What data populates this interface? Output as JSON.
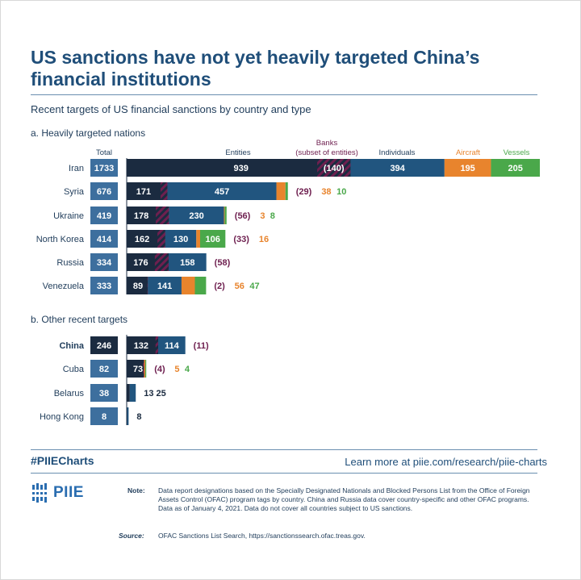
{
  "title": "US sanctions have not yet heavily targeted China’s financial institutions",
  "subtitle": "Recent targets of US financial sanctions by country and type",
  "section_a": "a. Heavily targeted nations",
  "section_b": "b. Other recent targets",
  "headers": {
    "total": "Total",
    "entities": "Entities",
    "banks": "Banks",
    "banks_note": "(subset of entities)",
    "individuals": "Individuals",
    "aircraft": "Aircraft",
    "vessels": "Vessels"
  },
  "colors": {
    "entities": "#1b2b40",
    "banks_hatch": "#6e1f4f",
    "individuals": "#21557f",
    "aircraft": "#e8842d",
    "vessels": "#4aa84a",
    "total_box": "#3d6f9e",
    "total_box_highlight": "#1b2b40"
  },
  "chart_data": {
    "type": "bar",
    "stacked": true,
    "orientation": "horizontal",
    "series_names": [
      "Entities",
      "Banks (subset of entities)",
      "Individuals",
      "Aircraft",
      "Vessels"
    ],
    "groups": [
      {
        "label": "a. Heavily targeted nations",
        "rows": [
          {
            "country": "Iran",
            "total": "1733",
            "entities": 939,
            "banks": 140,
            "individuals": 394,
            "aircraft": 195,
            "vessels": 205,
            "labels": {
              "entities": "939",
              "banks": "(140)",
              "individuals": "394",
              "aircraft": "195",
              "vessels": "205"
            },
            "outside": []
          },
          {
            "country": "Syria",
            "total": "676",
            "entities": 171,
            "banks": 29,
            "individuals": 457,
            "aircraft": 38,
            "vessels": 10,
            "labels": {
              "entities": "171",
              "individuals": "457"
            },
            "outside": [
              {
                "t": "(29)",
                "c": "banks"
              },
              {
                "t": "38",
                "c": "aircraft"
              },
              {
                "t": "10",
                "c": "vessels"
              }
            ]
          },
          {
            "country": "Ukraine",
            "total": "419",
            "entities": 178,
            "banks": 56,
            "individuals": 230,
            "aircraft": 3,
            "vessels": 8,
            "labels": {
              "entities": "178",
              "individuals": "230"
            },
            "outside": [
              {
                "t": "(56)",
                "c": "banks"
              },
              {
                "t": "3",
                "c": "aircraft"
              },
              {
                "t": "8",
                "c": "vessels"
              }
            ]
          },
          {
            "country": "North Korea",
            "total": "414",
            "entities": 162,
            "banks": 33,
            "individuals": 130,
            "aircraft": 16,
            "vessels": 106,
            "labels": {
              "entities": "162",
              "individuals": "130",
              "vessels": "106"
            },
            "outside": [
              {
                "t": "(33)",
                "c": "banks"
              },
              {
                "t": "16",
                "c": "aircraft"
              }
            ]
          },
          {
            "country": "Russia",
            "total": "334",
            "entities": 176,
            "banks": 58,
            "individuals": 158,
            "aircraft": 0,
            "vessels": 0,
            "labels": {
              "entities": "176",
              "individuals": "158"
            },
            "outside": [
              {
                "t": "(58)",
                "c": "banks"
              }
            ]
          },
          {
            "country": "Venezuela",
            "total": "333",
            "entities": 89,
            "banks": 2,
            "individuals": 141,
            "aircraft": 56,
            "vessels": 47,
            "labels": {
              "entities": "89",
              "individuals": "141"
            },
            "outside": [
              {
                "t": "(2)",
                "c": "banks"
              },
              {
                "t": "56",
                "c": "aircraft"
              },
              {
                "t": "47",
                "c": "vessels"
              }
            ]
          }
        ]
      },
      {
        "label": "b. Other recent targets",
        "rows": [
          {
            "country": "China",
            "total": "246",
            "highlight": true,
            "entities": 132,
            "banks": 11,
            "individuals": 114,
            "aircraft": 0,
            "vessels": 0,
            "labels": {
              "entities": "132",
              "individuals": "114"
            },
            "outside": [
              {
                "t": "(11)",
                "c": "banks"
              }
            ]
          },
          {
            "country": "Cuba",
            "total": "82",
            "entities": 73,
            "banks": 4,
            "individuals": 0,
            "aircraft": 5,
            "vessels": 4,
            "labels": {
              "entities": "73"
            },
            "outside": [
              {
                "t": "(4)",
                "c": "banks"
              },
              {
                "t": "5",
                "c": "aircraft"
              },
              {
                "t": "4",
                "c": "vessels"
              }
            ]
          },
          {
            "country": "Belarus",
            "total": "38",
            "entities": 13,
            "banks": 0,
            "individuals": 25,
            "aircraft": 0,
            "vessels": 0,
            "labels": {},
            "outside": [
              {
                "t": "13 25",
                "c": "dark"
              }
            ]
          },
          {
            "country": "Hong Kong",
            "total": "8",
            "entities": 0,
            "banks": 0,
            "individuals": 8,
            "aircraft": 0,
            "vessels": 0,
            "labels": {},
            "outside": [
              {
                "t": "8",
                "c": "dark"
              }
            ]
          }
        ]
      }
    ]
  },
  "footer": {
    "hashtag": "#PIIECharts",
    "link": "Learn more at piie.com/research/piie-charts",
    "logo": "PIIE",
    "note_label": "Note:",
    "note_text": "Data report designations based on the Specially Designated Nationals and Blocked Persons List from the Office of Foreign Assets Control (OFAC) program tags by country. China and Russia data cover country-specific and other OFAC programs. Data as of January 4, 2021. Data do not cover all countries subject to US sanctions.",
    "source_label": "Source:",
    "source_text": "OFAC Sanctions List Search, https://sanctionssearch.ofac.treas.gov."
  }
}
